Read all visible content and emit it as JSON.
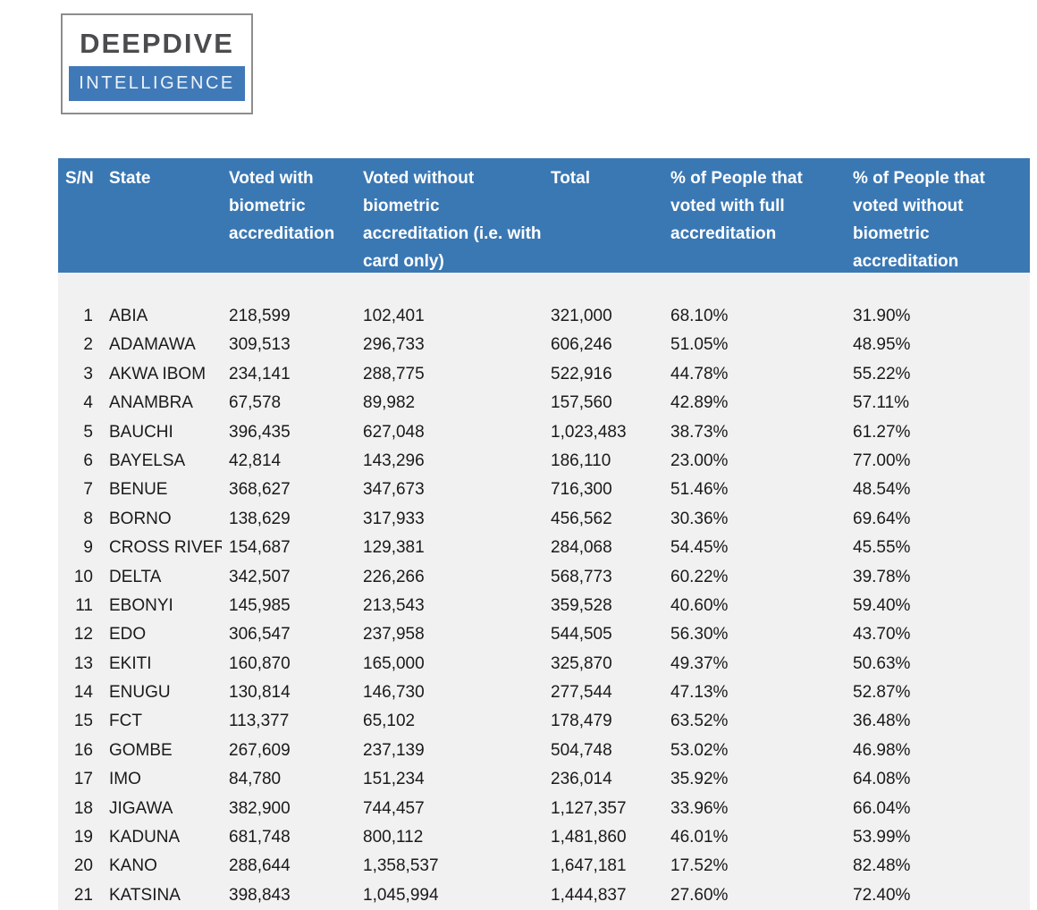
{
  "logo": {
    "line1": "DEEPDIVE",
    "line2": "INTELLIGENCE"
  },
  "table": {
    "columns": [
      "S/N",
      "State",
      "Voted with biometric accreditation",
      "Voted without biometric accreditation (i.e. with card only)",
      "Total",
      "% of People that voted with full accreditation",
      "% of People that voted without biometric accreditation"
    ],
    "rows": [
      [
        "1",
        "ABIA",
        "218,599",
        "102,401",
        "321,000",
        "68.10%",
        "31.90%"
      ],
      [
        "2",
        "ADAMAWA",
        "309,513",
        "296,733",
        "606,246",
        "51.05%",
        "48.95%"
      ],
      [
        "3",
        "AKWA IBOM",
        "234,141",
        "288,775",
        "522,916",
        "44.78%",
        "55.22%"
      ],
      [
        "4",
        "ANAMBRA",
        "67,578",
        "89,982",
        "157,560",
        "42.89%",
        "57.11%"
      ],
      [
        "5",
        "BAUCHI",
        "396,435",
        "627,048",
        "1,023,483",
        "38.73%",
        "61.27%"
      ],
      [
        "6",
        "BAYELSA",
        "42,814",
        "143,296",
        "186,110",
        "23.00%",
        "77.00%"
      ],
      [
        "7",
        "BENUE",
        "368,627",
        "347,673",
        "716,300",
        "51.46%",
        "48.54%"
      ],
      [
        "8",
        "BORNO",
        "138,629",
        "317,933",
        "456,562",
        "30.36%",
        "69.64%"
      ],
      [
        "9",
        "CROSS RIVER",
        "154,687",
        "129,381",
        "284,068",
        "54.45%",
        "45.55%"
      ],
      [
        "10",
        "DELTA",
        "342,507",
        "226,266",
        "568,773",
        "60.22%",
        "39.78%"
      ],
      [
        "11",
        "EBONYI",
        "145,985",
        "213,543",
        "359,528",
        "40.60%",
        "59.40%"
      ],
      [
        "12",
        "EDO",
        "306,547",
        "237,958",
        "544,505",
        "56.30%",
        "43.70%"
      ],
      [
        "13",
        "EKITI",
        "160,870",
        "165,000",
        "325,870",
        "49.37%",
        "50.63%"
      ],
      [
        "14",
        "ENUGU",
        "130,814",
        "146,730",
        "277,544",
        "47.13%",
        "52.87%"
      ],
      [
        "15",
        "FCT",
        "113,377",
        "65,102",
        "178,479",
        "63.52%",
        "36.48%"
      ],
      [
        "16",
        "GOMBE",
        "267,609",
        "237,139",
        "504,748",
        "53.02%",
        "46.98%"
      ],
      [
        "17",
        "IMO",
        "84,780",
        "151,234",
        "236,014",
        "35.92%",
        "64.08%"
      ],
      [
        "18",
        "JIGAWA",
        "382,900",
        "744,457",
        "1,127,357",
        "33.96%",
        "66.04%"
      ],
      [
        "19",
        "KADUNA",
        "681,748",
        "800,112",
        "1,481,860",
        "46.01%",
        "53.99%"
      ],
      [
        "20",
        "KANO",
        "288,644",
        "1,358,537",
        "1,647,181",
        "17.52%",
        "82.48%"
      ],
      [
        "21",
        "KATSINA",
        "398,843",
        "1,045,994",
        "1,444,837",
        "27.60%",
        "72.40%"
      ]
    ]
  },
  "colors": {
    "header_blue": "#3a78b4",
    "body_gray": "#f1f1f1",
    "text_dark": "#1a1a1a",
    "logo_blue": "#4079b8",
    "logo_text": "#4c4c4e",
    "logo_border": "#8d8d8d"
  }
}
